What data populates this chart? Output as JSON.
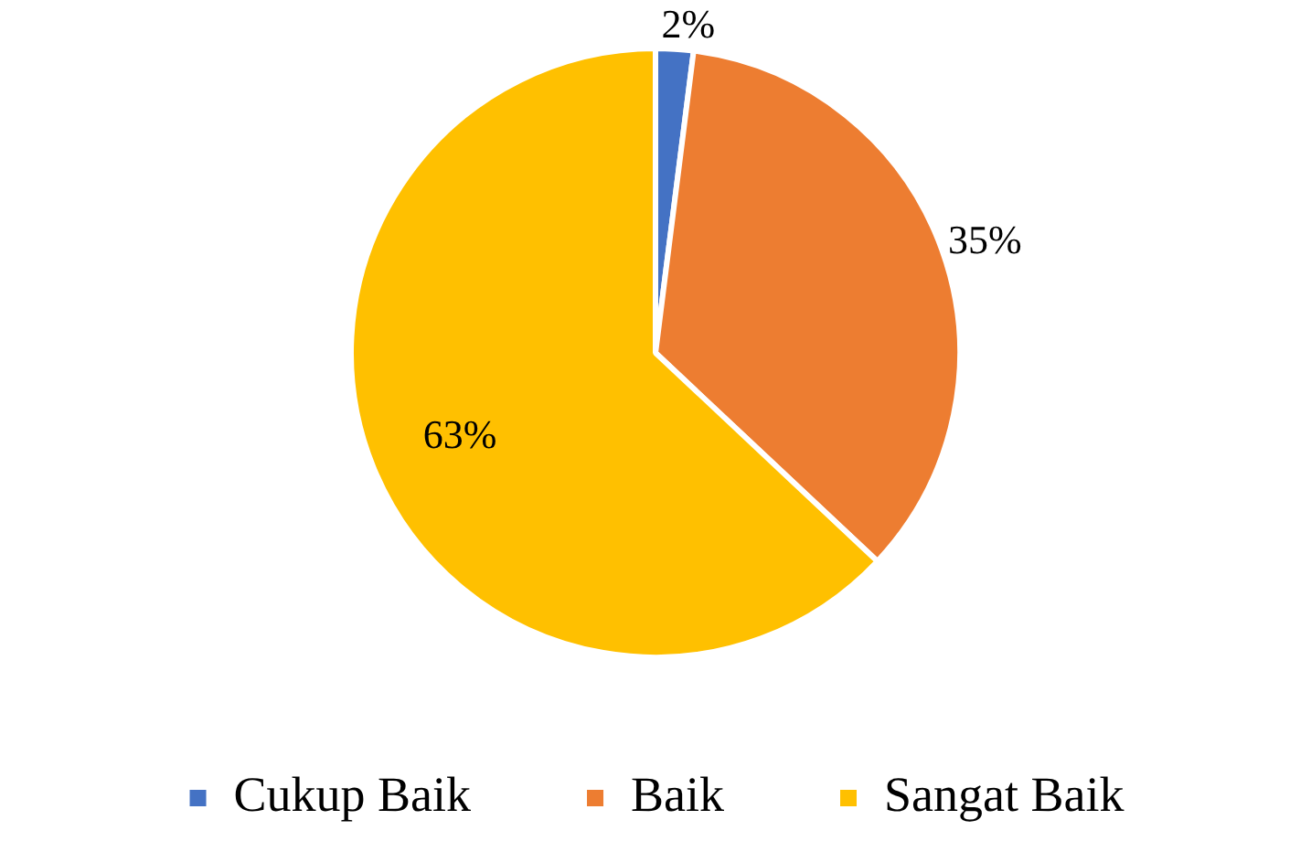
{
  "chart_data": {
    "type": "pie",
    "categories": [
      "Cukup Baik",
      "Baik",
      "Sangat Baik"
    ],
    "values": [
      2,
      35,
      63
    ],
    "colors": [
      "#4472c4",
      "#ed7d31",
      "#ffc000"
    ],
    "value_labels": [
      "2%",
      "35%",
      "63%"
    ],
    "legend": "bottom"
  }
}
